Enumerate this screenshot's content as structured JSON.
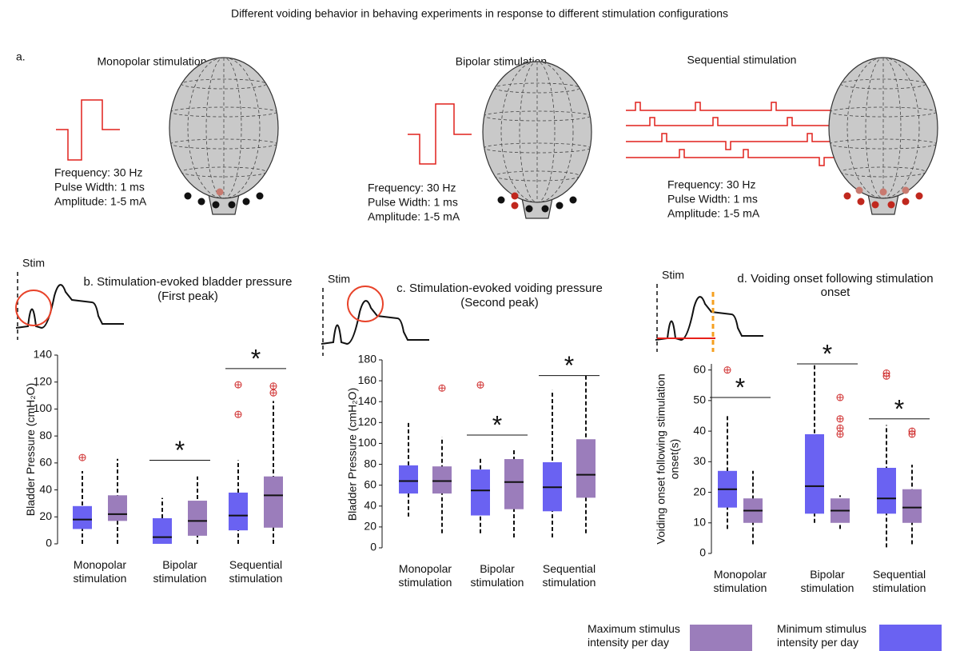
{
  "figure_title": "Different voiding behavior in behaving experiments in response to different stimulation configurations",
  "panel_a": {
    "label": "a.",
    "panels": [
      {
        "title": "Monopolar stimulation",
        "lines": [
          "Frequency: 30 Hz",
          "Pulse Width: 1 ms",
          "Amplitude: 1-5 mA"
        ]
      },
      {
        "title": "Bipolar stimulation",
        "lines": [
          "Frequency: 30 Hz",
          "Pulse Width: 1 ms",
          "Amplitude: 1-5 mA"
        ]
      },
      {
        "title": "Sequential stimulation",
        "lines": [
          "Frequency: 30 Hz",
          "Pulse Width: 1 ms",
          "Amplitude: 1-5 mA"
        ]
      }
    ]
  },
  "legend": [
    {
      "name": "Maximum stimulus intensity per day",
      "color": "#9b7dbb"
    },
    {
      "name": "Minimum stimulus intensity per day",
      "color": "#6a62f2"
    }
  ],
  "chart_data": [
    {
      "type": "box",
      "title": "b. Stimulation-evoked bladder pressure",
      "subtitle": "(First peak)",
      "stim_label": "Stim",
      "y_label": "Bladder Pressure (cmH₂O)",
      "categories": [
        "Monopolar stimulation",
        "Bipolar stimulation",
        "Sequential stimulation"
      ],
      "ylim": [
        0,
        140
      ],
      "yticks": [
        0,
        20,
        40,
        60,
        80,
        100,
        120,
        140
      ],
      "annotations": [
        null,
        {
          "text": "*",
          "y": 62
        },
        {
          "text": "*",
          "y": 130
        }
      ],
      "series": [
        {
          "legend": 1,
          "boxes": [
            {
              "whislo": 0,
              "q1": 11,
              "med": 18,
              "q3": 28,
              "whishi": 54,
              "outliers": [
                64
              ]
            },
            {
              "whislo": 0,
              "q1": 0,
              "med": 5,
              "q3": 19,
              "whishi": 34,
              "outliers": []
            },
            {
              "whislo": 0,
              "q1": 10,
              "med": 21,
              "q3": 38,
              "whishi": 62,
              "outliers": [
                118,
                96
              ]
            }
          ]
        },
        {
          "legend": 0,
          "boxes": [
            {
              "whislo": 0,
              "q1": 17,
              "med": 22,
              "q3": 36,
              "whishi": 63,
              "outliers": []
            },
            {
              "whislo": 0,
              "q1": 6,
              "med": 17,
              "q3": 32,
              "whishi": 50,
              "outliers": []
            },
            {
              "whislo": 0,
              "q1": 12,
              "med": 36,
              "q3": 50,
              "whishi": 106,
              "outliers": [
                117,
                112
              ]
            }
          ]
        }
      ]
    },
    {
      "type": "box",
      "title": "c. Stimulation-evoked voiding pressure",
      "subtitle": "(Second peak)",
      "stim_label": "Stim",
      "y_label": "Bladder Pressure (cmH₂O)",
      "categories": [
        "Monopolar stimulation",
        "Bipolar stimulation",
        "Sequential stimulation"
      ],
      "ylim": [
        0,
        180
      ],
      "yticks": [
        0,
        20,
        40,
        60,
        80,
        100,
        120,
        140,
        160,
        180
      ],
      "annotations": [
        null,
        {
          "text": "*",
          "y": 108
        },
        {
          "text": "*",
          "y": 165
        }
      ],
      "series": [
        {
          "legend": 1,
          "boxes": [
            {
              "whislo": 30,
              "q1": 52,
              "med": 64,
              "q3": 79,
              "whishi": 120,
              "outliers": []
            },
            {
              "whislo": 14,
              "q1": 31,
              "med": 55,
              "q3": 75,
              "whishi": 86,
              "outliers": [
                156
              ]
            },
            {
              "whislo": 10,
              "q1": 35,
              "med": 58,
              "q3": 82,
              "whishi": 151,
              "outliers": []
            }
          ]
        },
        {
          "legend": 0,
          "boxes": [
            {
              "whislo": 14,
              "q1": 52,
              "med": 64,
              "q3": 78,
              "whishi": 106,
              "outliers": [
                153
              ]
            },
            {
              "whislo": 10,
              "q1": 37,
              "med": 63,
              "q3": 85,
              "whishi": 95,
              "outliers": []
            },
            {
              "whislo": 14,
              "q1": 48,
              "med": 70,
              "q3": 104,
              "whishi": 165,
              "outliers": []
            }
          ]
        }
      ]
    },
    {
      "type": "box",
      "title": "d. Voiding onset following stimulation onset",
      "stim_label": "Stim",
      "y_label": "Voiding onset following stimulation onset(s)",
      "categories": [
        "Monopolar stimulation",
        "Bipolar stimulation",
        "Sequential stimulation"
      ],
      "ylim": [
        0,
        62
      ],
      "yticks": [
        0,
        10,
        20,
        30,
        40,
        50,
        60
      ],
      "annotations": [
        {
          "text": "*",
          "y": 51
        },
        {
          "text": "*",
          "y": 62
        },
        {
          "text": "*",
          "y": 44
        }
      ],
      "series": [
        {
          "legend": 1,
          "boxes": [
            {
              "whislo": 8,
              "q1": 15,
              "med": 21,
              "q3": 27,
              "whishi": 45,
              "outliers": [
                60
              ]
            },
            {
              "whislo": 10,
              "q1": 13,
              "med": 22,
              "q3": 39,
              "whishi": 62,
              "outliers": []
            },
            {
              "whislo": 2,
              "q1": 13,
              "med": 18,
              "q3": 28,
              "whishi": 42,
              "outliers": [
                59,
                58
              ]
            }
          ]
        },
        {
          "legend": 0,
          "boxes": [
            {
              "whislo": 3,
              "q1": 10,
              "med": 14,
              "q3": 18,
              "whishi": 27,
              "outliers": []
            },
            {
              "whislo": 8,
              "q1": 10,
              "med": 14,
              "q3": 18,
              "whishi": 19,
              "outliers": [
                51,
                44,
                41,
                39
              ]
            },
            {
              "whislo": 3,
              "q1": 10,
              "med": 15,
              "q3": 21,
              "whishi": 29,
              "outliers": [
                40,
                39
              ]
            }
          ]
        }
      ]
    }
  ]
}
